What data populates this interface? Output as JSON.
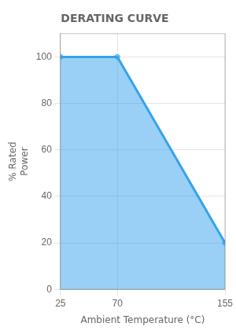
{
  "chart_data": {
    "type": "area",
    "title": "DERATING CURVE",
    "x_label": "Ambient Temperature (°C)",
    "y_label": "% Rated\nPower",
    "x": [
      25,
      70,
      155
    ],
    "values": [
      100,
      100,
      20
    ],
    "xlim": [
      25,
      155
    ],
    "xticks": [
      25,
      70,
      155
    ],
    "ylim": [
      0,
      110
    ],
    "yticks": [
      0,
      20,
      40,
      60,
      80,
      100
    ],
    "grid": true
  }
}
